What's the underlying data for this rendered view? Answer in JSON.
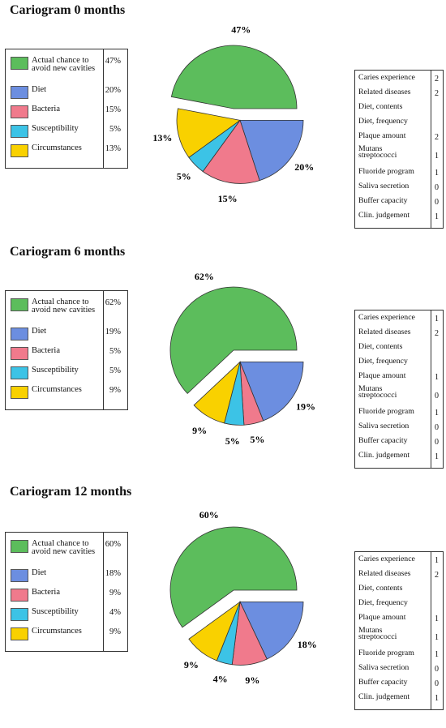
{
  "legend_colors": [
    "#5cbd5c",
    "#6c8ee0",
    "#f07a8c",
    "#3cc3e6",
    "#f9d100"
  ],
  "chart_data": [
    {
      "type": "pie",
      "title": "Cariogram 0 months",
      "labels": [
        "Actual chance to avoid new cavities",
        "Diet",
        "Bacteria",
        "Susceptibility",
        "Circumstances"
      ],
      "values": [
        47,
        20,
        15,
        5,
        13
      ],
      "value_labels": [
        "47%",
        "20%",
        "15%",
        "5%",
        "13%"
      ],
      "factors": [
        {
          "label": "Caries experience",
          "value": "2"
        },
        {
          "label": "Related diseases",
          "value": "2"
        },
        {
          "label": "Diet, contents",
          "value": ""
        },
        {
          "label": "Diet, frequency",
          "value": ""
        },
        {
          "label": "Plaque amount",
          "value": "2"
        },
        {
          "label": "Mutans streptococci",
          "value": "1"
        },
        {
          "label": "Fluoride program",
          "value": "1"
        },
        {
          "label": "Saliva secretion",
          "value": "0"
        },
        {
          "label": "Buffer capacity",
          "value": "0"
        },
        {
          "label": "Clin. judgement",
          "value": "1"
        }
      ]
    },
    {
      "type": "pie",
      "title": "Cariogram 6 months",
      "labels": [
        "Actual chance to avoid new cavities",
        "Diet",
        "Bacteria",
        "Susceptibility",
        "Circumstances"
      ],
      "values": [
        62,
        19,
        5,
        5,
        9
      ],
      "value_labels": [
        "62%",
        "19%",
        "5%",
        "5%",
        "9%"
      ],
      "factors": [
        {
          "label": "Caries experience",
          "value": "1"
        },
        {
          "label": "Related diseases",
          "value": "2"
        },
        {
          "label": "Diet, contents",
          "value": ""
        },
        {
          "label": "Diet, frequency",
          "value": ""
        },
        {
          "label": "Plaque amount",
          "value": "1"
        },
        {
          "label": "Mutans streptococci",
          "value": "0"
        },
        {
          "label": "Fluoride program",
          "value": "1"
        },
        {
          "label": "Saliva secretion",
          "value": "0"
        },
        {
          "label": "Buffer capacity",
          "value": "0"
        },
        {
          "label": "Clin. judgement",
          "value": "1"
        }
      ]
    },
    {
      "type": "pie",
      "title": "Cariogram 12 months",
      "labels": [
        "Actual chance to avoid new cavities",
        "Diet",
        "Bacteria",
        "Susceptibility",
        "Circumstances"
      ],
      "values": [
        60,
        18,
        9,
        4,
        9
      ],
      "value_labels": [
        "60%",
        "18%",
        "9%",
        "4%",
        "9%"
      ],
      "factors": [
        {
          "label": "Caries experience",
          "value": "1"
        },
        {
          "label": "Related diseases",
          "value": "2"
        },
        {
          "label": "Diet, contents",
          "value": ""
        },
        {
          "label": "Diet, frequency",
          "value": ""
        },
        {
          "label": "Plaque amount",
          "value": "1"
        },
        {
          "label": "Mutans streptococci",
          "value": "1"
        },
        {
          "label": "Fluoride program",
          "value": "1"
        },
        {
          "label": "Saliva secretion",
          "value": "0"
        },
        {
          "label": "Buffer capacity",
          "value": "0"
        },
        {
          "label": "Clin. judgement",
          "value": "1"
        }
      ]
    }
  ]
}
